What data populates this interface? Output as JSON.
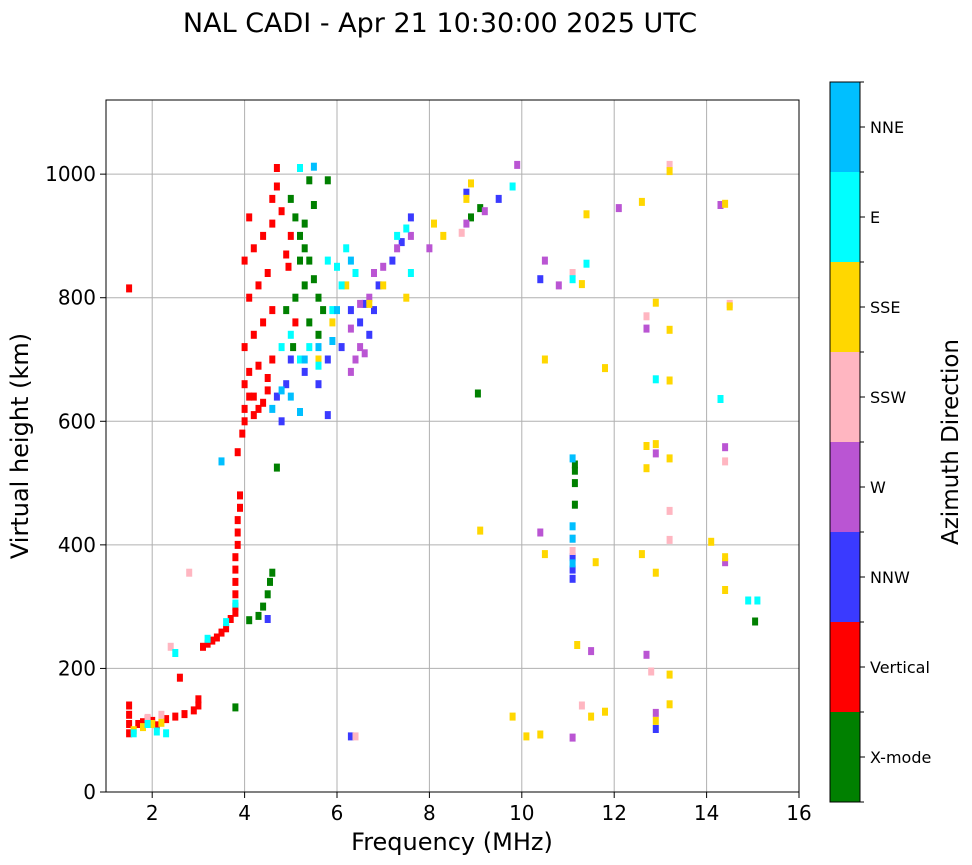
{
  "chart_data": {
    "type": "scatter",
    "title": "NAL CADI - Apr 21 10:30:00 2025 UTC",
    "xlabel": "Frequency (MHz)",
    "ylabel": "Virtual height (km)",
    "xlim": [
      1,
      16
    ],
    "ylim": [
      0,
      1120
    ],
    "xticks": [
      "2",
      "4",
      "6",
      "8",
      "10",
      "12",
      "14",
      "16"
    ],
    "yticks": [
      "0",
      "200",
      "400",
      "600",
      "800",
      "1000"
    ],
    "grid": true,
    "colorbar": {
      "label": "Azimuth Direction",
      "position": "right",
      "categories": [
        {
          "name": "X-mode",
          "color": "#008000"
        },
        {
          "name": "Vertical",
          "color": "#ff0000"
        },
        {
          "name": "NNW",
          "color": "#3a3aff"
        },
        {
          "name": "W",
          "color": "#ba55d3"
        },
        {
          "name": "SSW",
          "color": "#ffb6c1"
        },
        {
          "name": "SSE",
          "color": "#ffd700"
        },
        {
          "name": "E",
          "color": "#00ffff"
        },
        {
          "name": "NNE",
          "color": "#00bfff"
        }
      ]
    },
    "series": [
      {
        "name": "Vertical",
        "points": [
          [
            1.5,
            95
          ],
          [
            1.5,
            110
          ],
          [
            1.5,
            125
          ],
          [
            1.5,
            140
          ],
          [
            1.7,
            110
          ],
          [
            1.8,
            113
          ],
          [
            1.9,
            118
          ],
          [
            2.0,
            115
          ],
          [
            2.1,
            108
          ],
          [
            2.3,
            118
          ],
          [
            2.5,
            122
          ],
          [
            2.7,
            126
          ],
          [
            2.9,
            132
          ],
          [
            3.0,
            140
          ],
          [
            3.0,
            150
          ],
          [
            2.6,
            185
          ],
          [
            1.5,
            815
          ],
          [
            3.1,
            235
          ],
          [
            3.2,
            240
          ],
          [
            3.3,
            245
          ],
          [
            3.4,
            250
          ],
          [
            3.5,
            258
          ],
          [
            3.6,
            265
          ],
          [
            3.7,
            280
          ],
          [
            3.8,
            290
          ],
          [
            3.8,
            300
          ],
          [
            3.8,
            320
          ],
          [
            3.8,
            340
          ],
          [
            3.8,
            360
          ],
          [
            3.8,
            380
          ],
          [
            3.85,
            400
          ],
          [
            3.85,
            420
          ],
          [
            3.85,
            440
          ],
          [
            3.9,
            460
          ],
          [
            3.9,
            480
          ],
          [
            3.85,
            550
          ],
          [
            3.95,
            580
          ],
          [
            4.0,
            600
          ],
          [
            4.0,
            620
          ],
          [
            4.1,
            640
          ],
          [
            4.0,
            660
          ],
          [
            4.2,
            610
          ],
          [
            4.3,
            620
          ],
          [
            4.2,
            640
          ],
          [
            4.4,
            630
          ],
          [
            4.5,
            650
          ],
          [
            4.1,
            680
          ],
          [
            4.3,
            690
          ],
          [
            4.5,
            670
          ],
          [
            4.6,
            700
          ],
          [
            4.0,
            720
          ],
          [
            4.2,
            740
          ],
          [
            4.4,
            760
          ],
          [
            4.6,
            780
          ],
          [
            4.1,
            800
          ],
          [
            4.3,
            820
          ],
          [
            4.5,
            840
          ],
          [
            4.0,
            860
          ],
          [
            4.2,
            880
          ],
          [
            4.4,
            900
          ],
          [
            4.6,
            920
          ],
          [
            4.8,
            940
          ],
          [
            4.6,
            960
          ],
          [
            4.7,
            980
          ],
          [
            4.7,
            1010
          ],
          [
            4.1,
            930
          ],
          [
            4.9,
            870
          ],
          [
            5.1,
            760
          ],
          [
            4.95,
            850
          ],
          [
            5.0,
            900
          ]
        ]
      },
      {
        "name": "X-mode",
        "points": [
          [
            3.8,
            137
          ],
          [
            4.1,
            278
          ],
          [
            4.3,
            285
          ],
          [
            4.4,
            300
          ],
          [
            4.5,
            320
          ],
          [
            4.55,
            340
          ],
          [
            4.6,
            355
          ],
          [
            4.7,
            525
          ],
          [
            5.0,
            960
          ],
          [
            5.1,
            930
          ],
          [
            5.2,
            900
          ],
          [
            5.3,
            880
          ],
          [
            5.4,
            860
          ],
          [
            5.5,
            830
          ],
          [
            5.6,
            800
          ],
          [
            5.7,
            780
          ],
          [
            5.3,
            920
          ],
          [
            5.5,
            950
          ],
          [
            5.4,
            990
          ],
          [
            5.2,
            860
          ],
          [
            5.3,
            820
          ],
          [
            5.1,
            800
          ],
          [
            5.4,
            760
          ],
          [
            5.6,
            740
          ],
          [
            4.9,
            780
          ],
          [
            5.05,
            720
          ],
          [
            5.8,
            990
          ],
          [
            8.9,
            930
          ],
          [
            9.1,
            945
          ],
          [
            9.05,
            645
          ],
          [
            11.15,
            465
          ],
          [
            11.15,
            500
          ],
          [
            11.15,
            520
          ],
          [
            11.15,
            530
          ],
          [
            15.05,
            276
          ]
        ]
      },
      {
        "name": "NNW",
        "points": [
          [
            4.7,
            640
          ],
          [
            4.9,
            660
          ],
          [
            5.0,
            700
          ],
          [
            5.3,
            680
          ],
          [
            5.6,
            660
          ],
          [
            5.8,
            700
          ],
          [
            6.1,
            720
          ],
          [
            6.3,
            780
          ],
          [
            6.5,
            760
          ],
          [
            6.7,
            740
          ],
          [
            6.6,
            790
          ],
          [
            6.9,
            820
          ],
          [
            7.2,
            860
          ],
          [
            7.4,
            890
          ],
          [
            7.6,
            930
          ],
          [
            6.8,
            780
          ],
          [
            4.8,
            600
          ],
          [
            4.5,
            280
          ],
          [
            6.3,
            90
          ],
          [
            11.1,
            380
          ],
          [
            11.1,
            360
          ],
          [
            12.9,
            102
          ],
          [
            8.8,
            970
          ],
          [
            9.5,
            960
          ],
          [
            10.4,
            830
          ],
          [
            11.1,
            345
          ],
          [
            5.8,
            610
          ]
        ]
      },
      {
        "name": "W",
        "points": [
          [
            6.3,
            680
          ],
          [
            6.4,
            700
          ],
          [
            6.5,
            720
          ],
          [
            6.6,
            710
          ],
          [
            6.3,
            750
          ],
          [
            6.5,
            790
          ],
          [
            6.7,
            800
          ],
          [
            6.8,
            840
          ],
          [
            7.0,
            850
          ],
          [
            7.3,
            880
          ],
          [
            7.6,
            900
          ],
          [
            8.0,
            880
          ],
          [
            8.8,
            920
          ],
          [
            9.2,
            940
          ],
          [
            9.9,
            1015
          ],
          [
            10.5,
            860
          ],
          [
            10.8,
            820
          ],
          [
            12.1,
            945
          ],
          [
            12.7,
            750
          ],
          [
            12.9,
            548
          ],
          [
            12.7,
            222
          ],
          [
            12.9,
            128
          ],
          [
            14.4,
            558
          ],
          [
            14.4,
            372
          ],
          [
            10.4,
            420
          ],
          [
            11.1,
            88
          ],
          [
            11.5,
            228
          ],
          [
            14.3,
            950
          ]
        ]
      },
      {
        "name": "SSW",
        "points": [
          [
            2.8,
            355
          ],
          [
            2.4,
            235
          ],
          [
            2.2,
            125
          ],
          [
            1.9,
            120
          ],
          [
            6.4,
            90
          ],
          [
            11.1,
            410
          ],
          [
            11.1,
            390
          ],
          [
            13.2,
            1015
          ],
          [
            12.7,
            770
          ],
          [
            14.4,
            535
          ],
          [
            13.2,
            455
          ],
          [
            13.2,
            408
          ],
          [
            12.8,
            195
          ],
          [
            11.1,
            840
          ],
          [
            11.3,
            140
          ],
          [
            14.5,
            790
          ],
          [
            8.7,
            905
          ]
        ]
      },
      {
        "name": "SSE",
        "points": [
          [
            1.6,
            100
          ],
          [
            1.8,
            105
          ],
          [
            2.0,
            110
          ],
          [
            2.2,
            112
          ],
          [
            5.6,
            700
          ],
          [
            5.9,
            760
          ],
          [
            6.2,
            820
          ],
          [
            6.7,
            790
          ],
          [
            7.0,
            820
          ],
          [
            7.5,
            800
          ],
          [
            8.1,
            920
          ],
          [
            8.3,
            900
          ],
          [
            8.8,
            960
          ],
          [
            8.9,
            985
          ],
          [
            9.1,
            423
          ],
          [
            9.8,
            122
          ],
          [
            10.1,
            90
          ],
          [
            10.4,
            93
          ],
          [
            10.5,
            385
          ],
          [
            10.5,
            700
          ],
          [
            11.3,
            822
          ],
          [
            11.4,
            935
          ],
          [
            11.6,
            372
          ],
          [
            11.8,
            130
          ],
          [
            11.8,
            686
          ],
          [
            12.6,
            955
          ],
          [
            12.7,
            560
          ],
          [
            12.7,
            524
          ],
          [
            12.6,
            385
          ],
          [
            12.9,
            792
          ],
          [
            12.9,
            563
          ],
          [
            12.9,
            355
          ],
          [
            12.9,
            115
          ],
          [
            13.2,
            1005
          ],
          [
            13.2,
            748
          ],
          [
            13.2,
            540
          ],
          [
            13.2,
            190
          ],
          [
            13.2,
            142
          ],
          [
            14.1,
            405
          ],
          [
            14.4,
            380
          ],
          [
            14.4,
            327
          ],
          [
            14.4,
            952
          ],
          [
            11.2,
            238
          ],
          [
            11.5,
            122
          ],
          [
            14.5,
            786
          ],
          [
            13.2,
            666
          ]
        ]
      },
      {
        "name": "E",
        "points": [
          [
            1.6,
            95
          ],
          [
            1.9,
            110
          ],
          [
            2.1,
            98
          ],
          [
            2.3,
            95
          ],
          [
            2.5,
            225
          ],
          [
            3.2,
            248
          ],
          [
            3.6,
            275
          ],
          [
            3.8,
            305
          ],
          [
            4.8,
            720
          ],
          [
            5.0,
            740
          ],
          [
            5.2,
            700
          ],
          [
            5.4,
            720
          ],
          [
            5.6,
            690
          ],
          [
            5.9,
            780
          ],
          [
            6.0,
            850
          ],
          [
            6.1,
            820
          ],
          [
            5.8,
            860
          ],
          [
            6.2,
            880
          ],
          [
            6.4,
            840
          ],
          [
            7.6,
            840
          ],
          [
            7.3,
            900
          ],
          [
            7.5,
            912
          ],
          [
            9.8,
            980
          ],
          [
            11.1,
            830
          ],
          [
            11.4,
            855
          ],
          [
            14.3,
            636
          ],
          [
            14.9,
            310
          ],
          [
            15.1,
            310
          ],
          [
            5.2,
            1010
          ],
          [
            12.9,
            668
          ]
        ]
      },
      {
        "name": "NNE",
        "points": [
          [
            3.5,
            535
          ],
          [
            4.6,
            620
          ],
          [
            4.8,
            650
          ],
          [
            5.0,
            640
          ],
          [
            5.3,
            700
          ],
          [
            5.6,
            720
          ],
          [
            5.9,
            730
          ],
          [
            6.0,
            780
          ],
          [
            6.3,
            860
          ],
          [
            5.5,
            1012
          ],
          [
            11.1,
            410
          ],
          [
            11.1,
            430
          ],
          [
            11.1,
            540
          ],
          [
            11.1,
            370
          ],
          [
            5.2,
            615
          ]
        ]
      }
    ]
  }
}
